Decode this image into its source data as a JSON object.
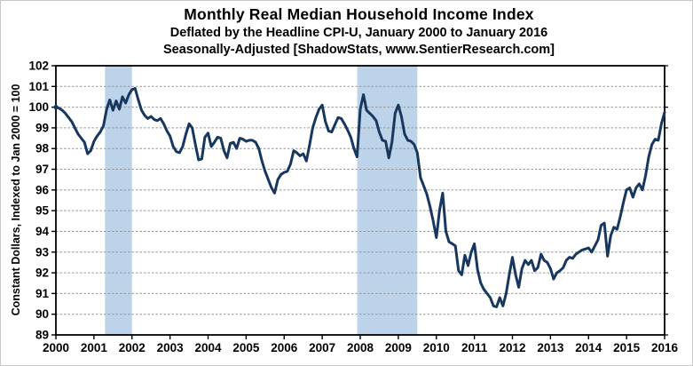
{
  "chart_data": {
    "type": "line",
    "title": "Monthly Real Median Household Income Index",
    "subtitle1": "Deflated by the Headline CPI-U, January 2000 to January 2016",
    "subtitle2": "Seasonally-Adjusted [ShadowStats, www.SentierResearch.com]",
    "ylabel": "Constant Dollars, Indexed to Jan 2000 = 100",
    "xlabel": "",
    "ylim": [
      89,
      102
    ],
    "ytick_step": 1,
    "ytick_labels": [
      "89",
      "90",
      "91",
      "92",
      "93",
      "94",
      "95",
      "96",
      "97",
      "98",
      "99",
      "100",
      "101",
      "102"
    ],
    "xlim": [
      2000,
      2016
    ],
    "xticks": [
      2000,
      2001,
      2002,
      2003,
      2004,
      2005,
      2006,
      2007,
      2008,
      2009,
      2010,
      2011,
      2012,
      2013,
      2014,
      2015,
      2016
    ],
    "grid": "horizontal-dashed",
    "legend_position": "none",
    "colors": {
      "line": "#17375E",
      "recession_band": "#BDD3E9",
      "gridline": "#969696",
      "frame": "#000000"
    },
    "recession_bands": {
      "ranges": [
        [
          2001.29,
          2002.0
        ],
        [
          2007.92,
          2009.5
        ]
      ]
    },
    "series": [
      {
        "name": "Real Median Household Income Index (Jan 2000 = 100)",
        "start": "2000-01",
        "frequency": "monthly",
        "values": [
          100.0,
          99.95,
          99.85,
          99.7,
          99.5,
          99.3,
          99.0,
          98.7,
          98.5,
          98.3,
          97.75,
          97.9,
          98.35,
          98.6,
          98.8,
          99.1,
          99.9,
          100.35,
          99.85,
          100.3,
          99.9,
          100.5,
          100.2,
          100.6,
          100.85,
          100.9,
          100.35,
          99.85,
          99.6,
          99.45,
          99.55,
          99.4,
          99.35,
          99.45,
          99.2,
          98.85,
          98.6,
          98.1,
          97.85,
          97.8,
          98.1,
          98.7,
          99.2,
          99.0,
          98.2,
          97.45,
          97.5,
          98.55,
          98.75,
          98.1,
          98.3,
          98.55,
          98.5,
          97.9,
          97.55,
          98.25,
          98.3,
          98.0,
          98.5,
          98.45,
          98.35,
          98.4,
          98.4,
          98.3,
          98.0,
          97.4,
          96.9,
          96.5,
          96.1,
          95.85,
          96.5,
          96.75,
          96.85,
          96.9,
          97.25,
          97.9,
          97.8,
          97.65,
          97.75,
          97.4,
          98.15,
          99.0,
          99.5,
          99.9,
          100.1,
          99.3,
          98.85,
          98.8,
          99.15,
          99.5,
          99.45,
          99.2,
          98.9,
          98.55,
          98.0,
          97.6,
          99.9,
          100.6,
          99.85,
          99.7,
          99.55,
          99.35,
          98.8,
          98.4,
          98.35,
          97.55,
          98.3,
          99.7,
          100.1,
          99.55,
          98.7,
          98.4,
          98.35,
          98.2,
          97.8,
          96.6,
          96.2,
          95.8,
          95.2,
          94.5,
          93.7,
          95.0,
          95.85,
          94.0,
          93.5,
          93.4,
          93.3,
          92.1,
          91.9,
          92.85,
          92.35,
          93.0,
          93.4,
          92.15,
          91.5,
          91.2,
          91.0,
          90.8,
          90.4,
          90.35,
          90.8,
          90.4,
          91.0,
          91.9,
          92.75,
          91.9,
          91.3,
          92.2,
          92.6,
          92.4,
          92.6,
          92.1,
          92.25,
          92.9,
          92.6,
          92.5,
          92.2,
          91.7,
          92.0,
          92.1,
          92.25,
          92.6,
          92.75,
          92.7,
          92.9,
          93.0,
          93.1,
          93.15,
          93.2,
          93.0,
          93.3,
          93.6,
          94.3,
          94.4,
          92.8,
          93.8,
          94.2,
          94.1,
          94.7,
          95.4,
          96.0,
          96.1,
          95.65,
          96.1,
          96.3,
          96.0,
          96.7,
          97.6,
          98.2,
          98.45,
          98.4,
          99.2,
          99.75
        ]
      }
    ]
  }
}
